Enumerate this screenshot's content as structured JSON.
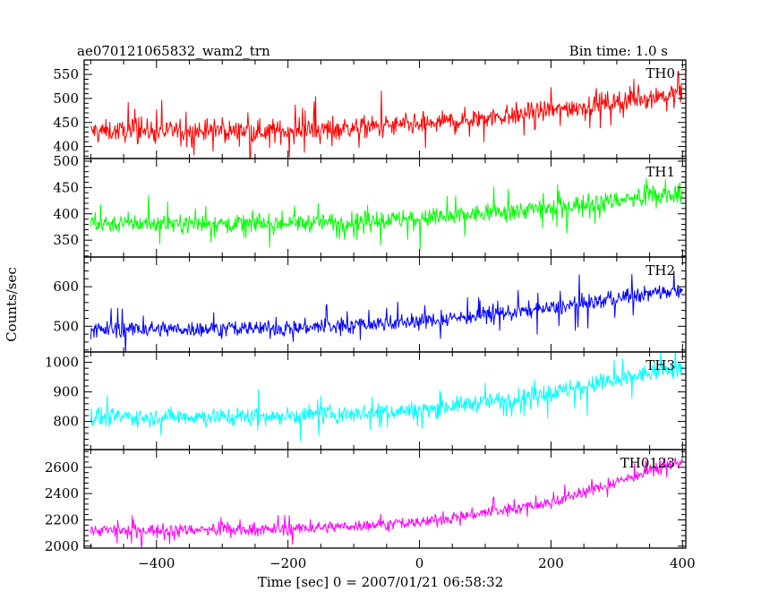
{
  "title_left": "ae070121065832_wam2_trn",
  "title_right": "Bin time: 1.0 s",
  "ylabel": "Counts/sec",
  "xlabel": "Time [sec] 0 = 2007/01/21 06:58:32",
  "chart_data": {
    "type": "line",
    "x_range": [
      -510,
      405
    ],
    "x_ticks": [
      -400,
      -200,
      0,
      200,
      400
    ],
    "bin_time_s": 1.0,
    "panels": [
      {
        "name": "TH0",
        "color": "#ff0000",
        "ylim": [
          375,
          580
        ],
        "yticks": [
          400,
          450,
          500,
          550
        ],
        "trend": [
          [
            -500,
            432
          ],
          [
            -200,
            432
          ],
          [
            0,
            445
          ],
          [
            200,
            475
          ],
          [
            400,
            512
          ]
        ],
        "noise_amplitude": 28,
        "spike_amplitude": 55
      },
      {
        "name": "TH1",
        "color": "#00ff00",
        "ylim": [
          318,
          505
        ],
        "yticks": [
          350,
          400,
          450,
          500
        ],
        "trend": [
          [
            -500,
            382
          ],
          [
            -200,
            382
          ],
          [
            0,
            390
          ],
          [
            200,
            412
          ],
          [
            400,
            440
          ]
        ],
        "noise_amplitude": 22,
        "spike_amplitude": 45
      },
      {
        "name": "TH2",
        "color": "#0000ff",
        "ylim": [
          435,
          675
        ],
        "yticks": [
          500,
          600
        ],
        "trend": [
          [
            -500,
            492
          ],
          [
            -200,
            495
          ],
          [
            0,
            512
          ],
          [
            200,
            545
          ],
          [
            400,
            595
          ]
        ],
        "noise_amplitude": 25,
        "spike_amplitude": 60
      },
      {
        "name": "TH3",
        "color": "#00ffff",
        "ylim": [
          705,
          1035
        ],
        "yticks": [
          800,
          900,
          1000
        ],
        "trend": [
          [
            -500,
            815
          ],
          [
            -200,
            818
          ],
          [
            0,
            838
          ],
          [
            200,
            895
          ],
          [
            400,
            985
          ]
        ],
        "noise_amplitude": 38,
        "spike_amplitude": 80
      },
      {
        "name": "TH0123",
        "color": "#ff00ff",
        "ylim": [
          1985,
          2735
        ],
        "yticks": [
          2000,
          2200,
          2400,
          2600
        ],
        "trend": [
          [
            -500,
            2120
          ],
          [
            -200,
            2130
          ],
          [
            0,
            2180
          ],
          [
            200,
            2330
          ],
          [
            400,
            2650
          ]
        ],
        "noise_amplitude": 55,
        "spike_amplitude": 120
      }
    ]
  }
}
